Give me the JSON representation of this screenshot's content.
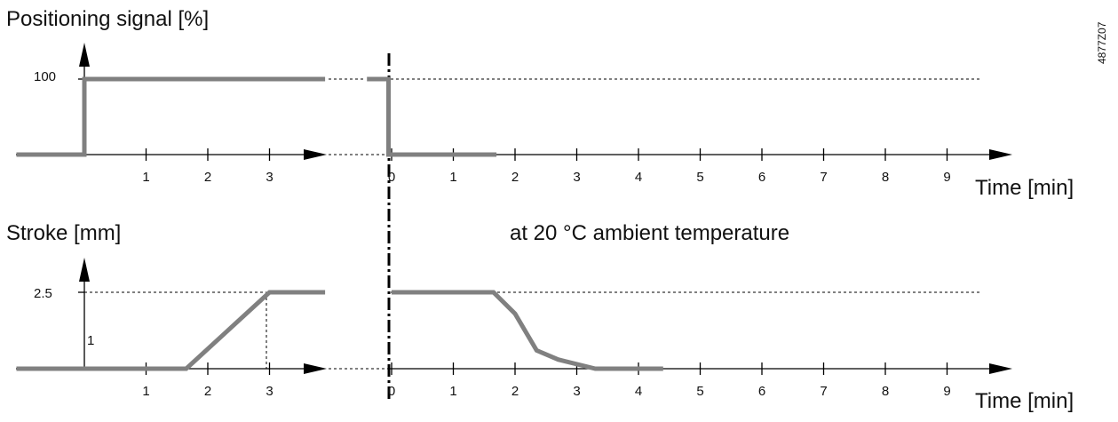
{
  "figure_code": "4877Z07",
  "chart_data": [
    {
      "type": "line",
      "title": "Positioning signal  [%]",
      "xlabel": "Time  [min]",
      "ylabel": "Positioning signal  [%]",
      "y_tick_labels": [
        "100"
      ],
      "segments": [
        {
          "name": "",
          "x_tick_labels": [
            "1",
            "2",
            "3"
          ],
          "points": [
            [
              -1.1,
              0
            ],
            [
              0,
              0
            ],
            [
              0,
              100
            ],
            [
              3.9,
              100
            ]
          ]
        },
        {
          "name": "",
          "x_tick_labels": [
            "0",
            "1",
            "2",
            "3",
            "4",
            "5",
            "6",
            "7",
            "8",
            "9"
          ],
          "points": [
            [
              -0.4,
              100
            ],
            [
              -0.05,
              100
            ],
            [
              -0.05,
              0
            ],
            [
              1.7,
              0
            ]
          ]
        }
      ]
    },
    {
      "type": "line",
      "title": "Stroke  [mm]",
      "annotation": "at 20 °C ambient temperature",
      "xlabel": "Time  [min]",
      "ylabel": "Stroke  [mm]",
      "y_tick_labels": [
        "2.5",
        "1"
      ],
      "segments": [
        {
          "name": "",
          "x_tick_labels": [
            "1",
            "2",
            "3"
          ],
          "points": [
            [
              -1.1,
              0
            ],
            [
              1.65,
              0
            ],
            [
              3,
              2.5
            ],
            [
              3.9,
              2.5
            ]
          ]
        },
        {
          "name": "",
          "x_tick_labels": [
            "0",
            "1",
            "2",
            "3",
            "4",
            "5",
            "6",
            "7",
            "8",
            "9"
          ],
          "points": [
            [
              0,
              2.5
            ],
            [
              1.65,
              2.5
            ],
            [
              2.0,
              1.8
            ],
            [
              2.35,
              0.6
            ],
            [
              2.7,
              0.3
            ],
            [
              3.3,
              0
            ],
            [
              4.4,
              0
            ]
          ]
        }
      ]
    }
  ]
}
